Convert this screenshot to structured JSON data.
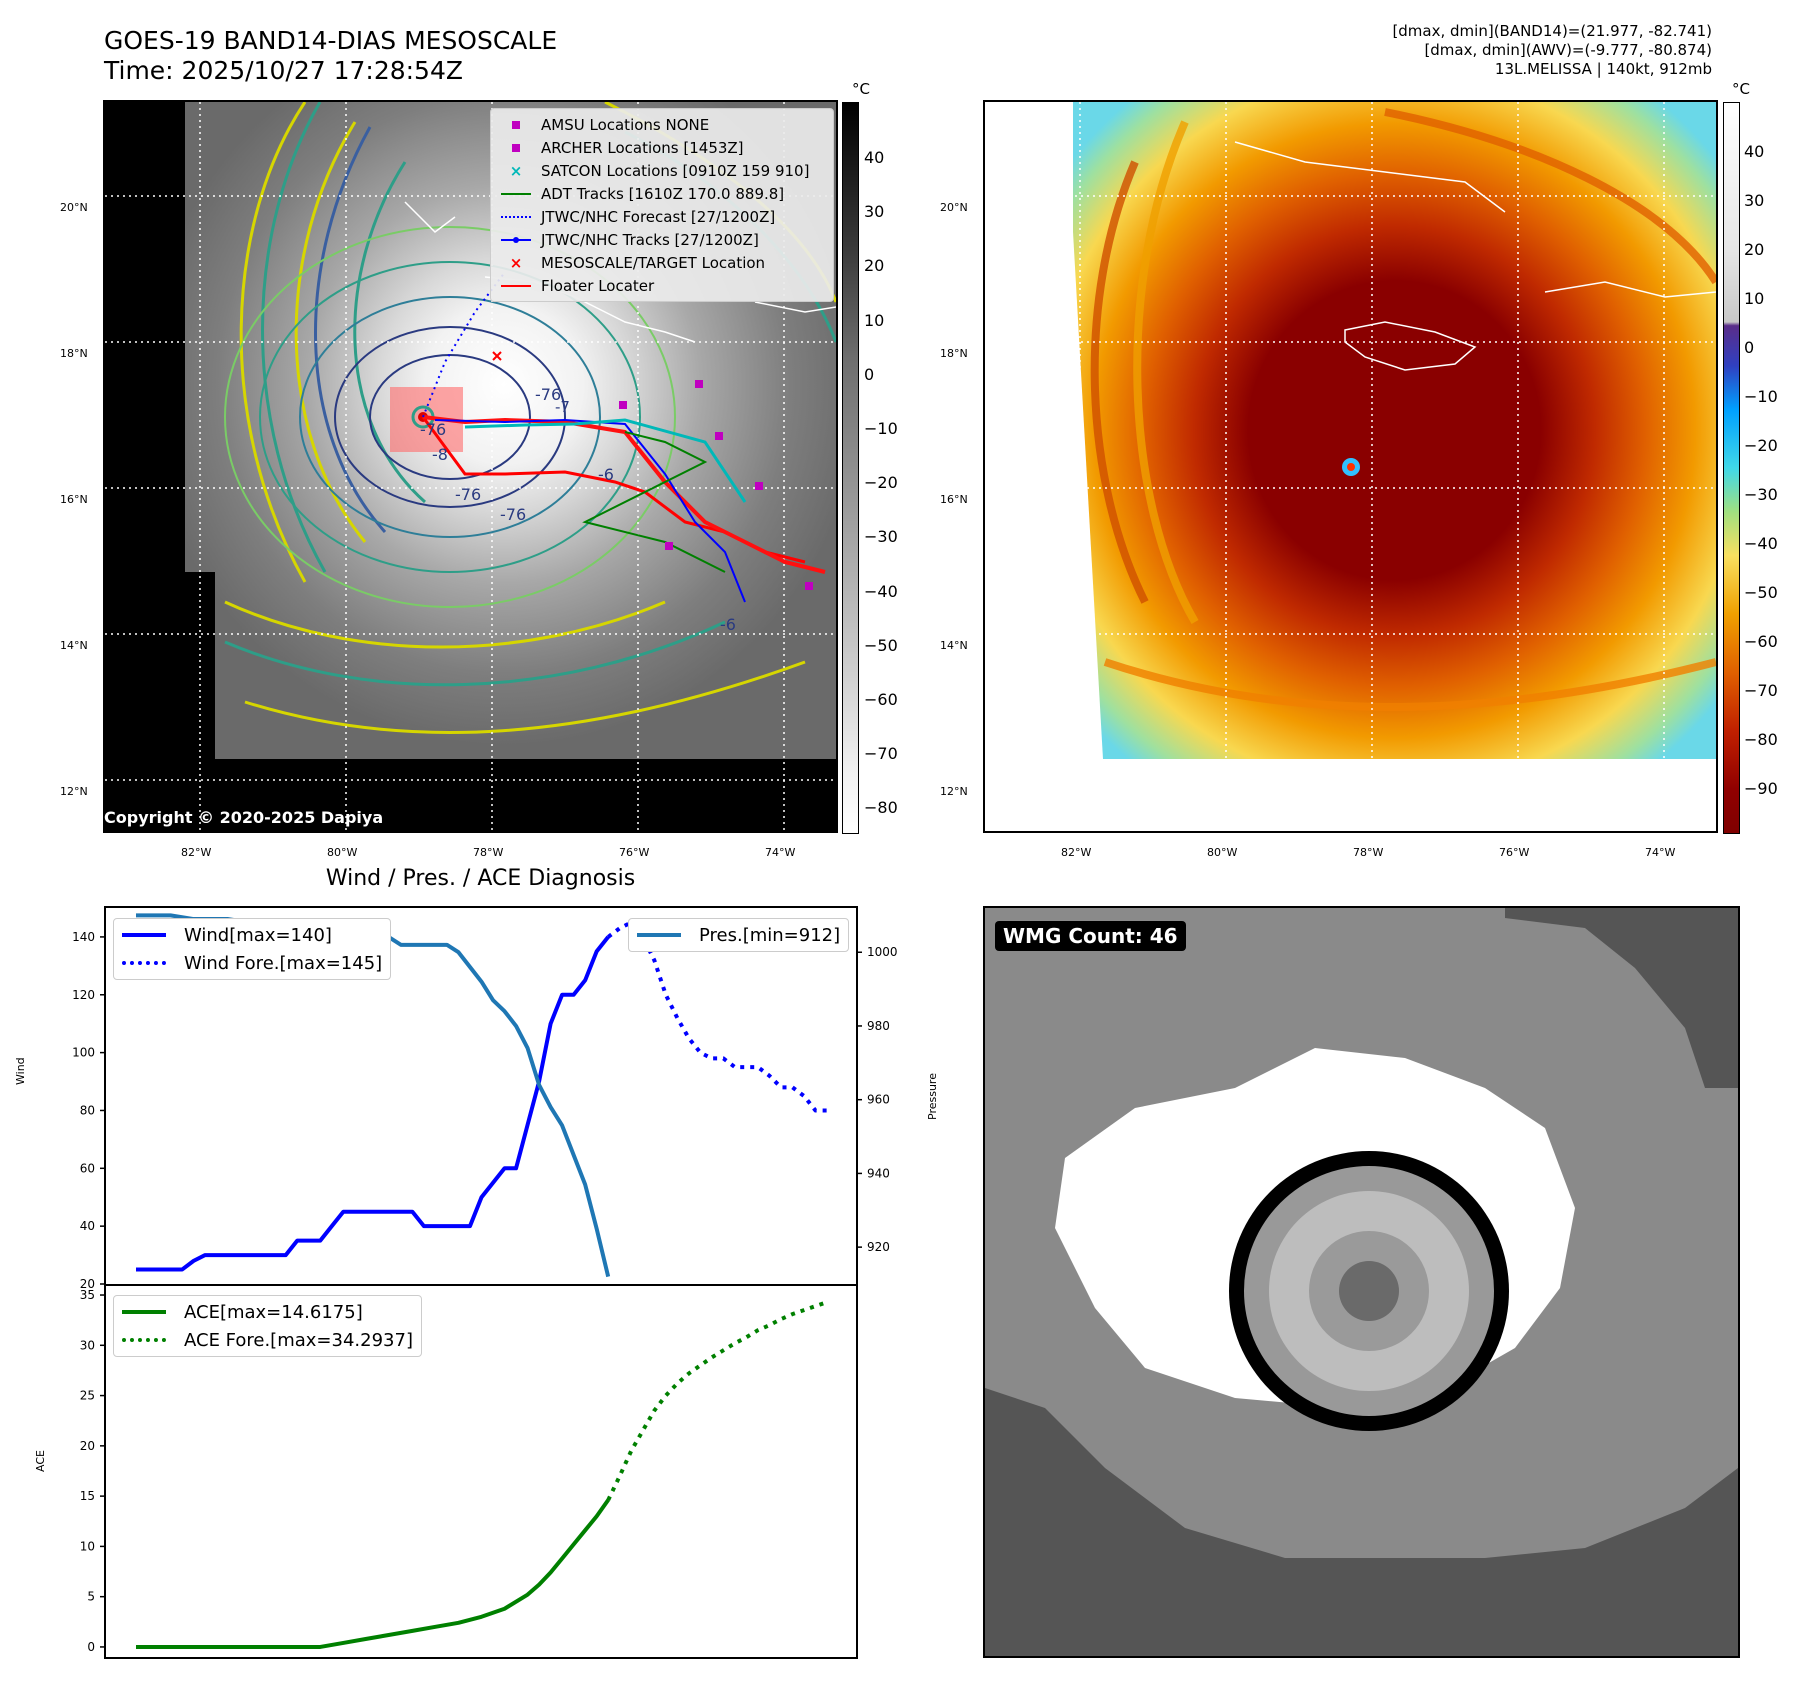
{
  "header": {
    "title_line1": "GOES-19 BAND14-DIAS MESOSCALE",
    "title_line2": "Time: 2025/10/27 17:28:54Z",
    "info_line1": "[dmax, dmin](BAND14)=(21.977, -82.741)",
    "info_line2": "[dmax, dmin](AWV)=(-9.777, -80.874)",
    "info_line3": "13L.MELISSA | 140kt, 912mb"
  },
  "maps": {
    "lat_labels": [
      "20°N",
      "18°N",
      "16°N",
      "14°N",
      "12°N"
    ],
    "lon_labels": [
      "82°W",
      "80°W",
      "78°W",
      "76°W",
      "74°W"
    ],
    "colorbar_unit": "°C",
    "left_colorbar_ticks": [
      "40",
      "30",
      "20",
      "10",
      "0",
      "−10",
      "−20",
      "−30",
      "−40",
      "−50",
      "−60",
      "−70",
      "−80"
    ],
    "right_colorbar_ticks": [
      "40",
      "30",
      "20",
      "10",
      "0",
      "−10",
      "−20",
      "−30",
      "−40",
      "−50",
      "−60",
      "−70",
      "−80",
      "−90"
    ],
    "contour_labels": [
      "-76",
      "-76",
      "-76",
      "-76",
      "-8",
      "-6",
      "-6"
    ],
    "copyright": "Copyright © 2020-2025 Dapiya",
    "legend": [
      {
        "label": "AMSU Locations NONE",
        "icon": "square-marker",
        "color": "#c000c0"
      },
      {
        "label": "ARCHER Locations [1453Z]",
        "icon": "square-marker",
        "color": "#c000c0"
      },
      {
        "label": "SATCON Locations [0910Z 159 910]",
        "icon": "x-marker",
        "color": "#00b8b8"
      },
      {
        "label": "ADT Tracks [1610Z 170.0 889.8]",
        "icon": "solid-line",
        "color": "#008000"
      },
      {
        "label": "JTWC/NHC Forecast [27/1200Z]",
        "icon": "dotted-line",
        "color": "#0000ff"
      },
      {
        "label": "JTWC/NHC Tracks [27/1200Z]",
        "icon": "dot-line",
        "color": "#0000ff"
      },
      {
        "label": "MESOSCALE/TARGET Location",
        "icon": "x-marker",
        "color": "#ff0000"
      },
      {
        "label": "Floater Locater",
        "icon": "solid-line",
        "color": "#ff0000"
      }
    ]
  },
  "wmg": {
    "label": "WMG Count: 46"
  },
  "chart_data": [
    {
      "type": "line",
      "title": "Wind / Pres. / ACE Diagnosis",
      "ylabel": "Wind",
      "y2label": "Pressure",
      "ylim": [
        20,
        150
      ],
      "y2lim": [
        910,
        1012
      ],
      "yticks": [
        20,
        40,
        60,
        80,
        100,
        120,
        140
      ],
      "y2ticks": [
        920,
        940,
        960,
        980,
        1000
      ],
      "x_range": [
        0,
        60
      ],
      "series": [
        {
          "name": "Wind[max=140]",
          "axis": "left",
          "style": "solid",
          "color": "#0000ff",
          "x": [
            0,
            3,
            4,
            5,
            6,
            7,
            8,
            9,
            10,
            11,
            12,
            13,
            14,
            15,
            16,
            17,
            18,
            19,
            20,
            21,
            22,
            23,
            24,
            25,
            26,
            27,
            28,
            29,
            30,
            31,
            32,
            33,
            34,
            35,
            36,
            37,
            38,
            39,
            40,
            41
          ],
          "y": [
            25,
            25,
            25,
            28,
            30,
            30,
            30,
            30,
            30,
            30,
            30,
            30,
            35,
            35,
            35,
            40,
            45,
            45,
            45,
            45,
            45,
            45,
            45,
            40,
            40,
            40,
            40,
            40,
            50,
            55,
            60,
            60,
            75,
            90,
            110,
            120,
            120,
            125,
            135,
            140
          ]
        },
        {
          "name": "Wind Fore.[max=145]",
          "axis": "left",
          "style": "dotted",
          "color": "#0000ff",
          "x": [
            41,
            42,
            43,
            44,
            45,
            46,
            47,
            48,
            49,
            50,
            51,
            52,
            53,
            54,
            55,
            56,
            57,
            58,
            59,
            60
          ],
          "y": [
            140,
            143,
            145,
            140,
            132,
            120,
            112,
            105,
            100,
            98,
            98,
            95,
            95,
            95,
            92,
            88,
            88,
            85,
            80,
            80
          ]
        },
        {
          "name": "Pres.[min=912]",
          "axis": "right",
          "style": "solid",
          "color": "#1f77b4",
          "x": [
            0,
            3,
            5,
            8,
            10,
            11,
            12,
            13,
            14,
            15,
            16,
            17,
            18,
            19,
            20,
            21,
            22,
            23,
            24,
            25,
            26,
            27,
            28,
            29,
            30,
            31,
            32,
            33,
            34,
            35,
            36,
            37,
            38,
            39,
            40,
            41
          ],
          "y": [
            1010,
            1010,
            1009,
            1009,
            1008,
            1008,
            1007,
            1005,
            1004,
            1003,
            1003,
            1003,
            1002,
            1003,
            1003,
            1004,
            1004,
            1002,
            1002,
            1002,
            1002,
            1002,
            1000,
            996,
            992,
            987,
            984,
            980,
            974,
            964,
            958,
            953,
            945,
            937,
            925,
            912
          ]
        }
      ],
      "legend_left": [
        "Wind[max=140]",
        "Wind Fore.[max=145]"
      ],
      "legend_right": [
        "Pres.[min=912]"
      ]
    },
    {
      "type": "line",
      "ylabel": "ACE",
      "ylim": [
        -1,
        35.5
      ],
      "yticks": [
        0,
        5,
        10,
        15,
        20,
        25,
        30,
        35
      ],
      "x_range": [
        0,
        60
      ],
      "series": [
        {
          "name": "ACE[max=14.6175]",
          "style": "solid",
          "color": "#008000",
          "x": [
            0,
            5,
            10,
            14,
            16,
            18,
            20,
            22,
            24,
            26,
            28,
            30,
            32,
            34,
            35,
            36,
            37,
            38,
            39,
            40,
            41
          ],
          "y": [
            0,
            0,
            0,
            0,
            0,
            0.4,
            0.8,
            1.2,
            1.6,
            2.0,
            2.4,
            3.0,
            3.8,
            5.2,
            6.2,
            7.4,
            8.8,
            10.2,
            11.6,
            13.0,
            14.6175
          ]
        },
        {
          "name": "ACE Fore.[max=34.2937]",
          "style": "dotted",
          "color": "#008000",
          "x": [
            41,
            42,
            43,
            44,
            45,
            46,
            47,
            48,
            49,
            50,
            51,
            52,
            53,
            54,
            55,
            56,
            57,
            58,
            59,
            60
          ],
          "y": [
            14.6,
            17.0,
            19.5,
            21.5,
            23.5,
            25.0,
            26.2,
            27.2,
            28.0,
            28.8,
            29.5,
            30.2,
            30.8,
            31.5,
            32.0,
            32.6,
            33.1,
            33.5,
            33.9,
            34.2937
          ]
        }
      ]
    }
  ]
}
